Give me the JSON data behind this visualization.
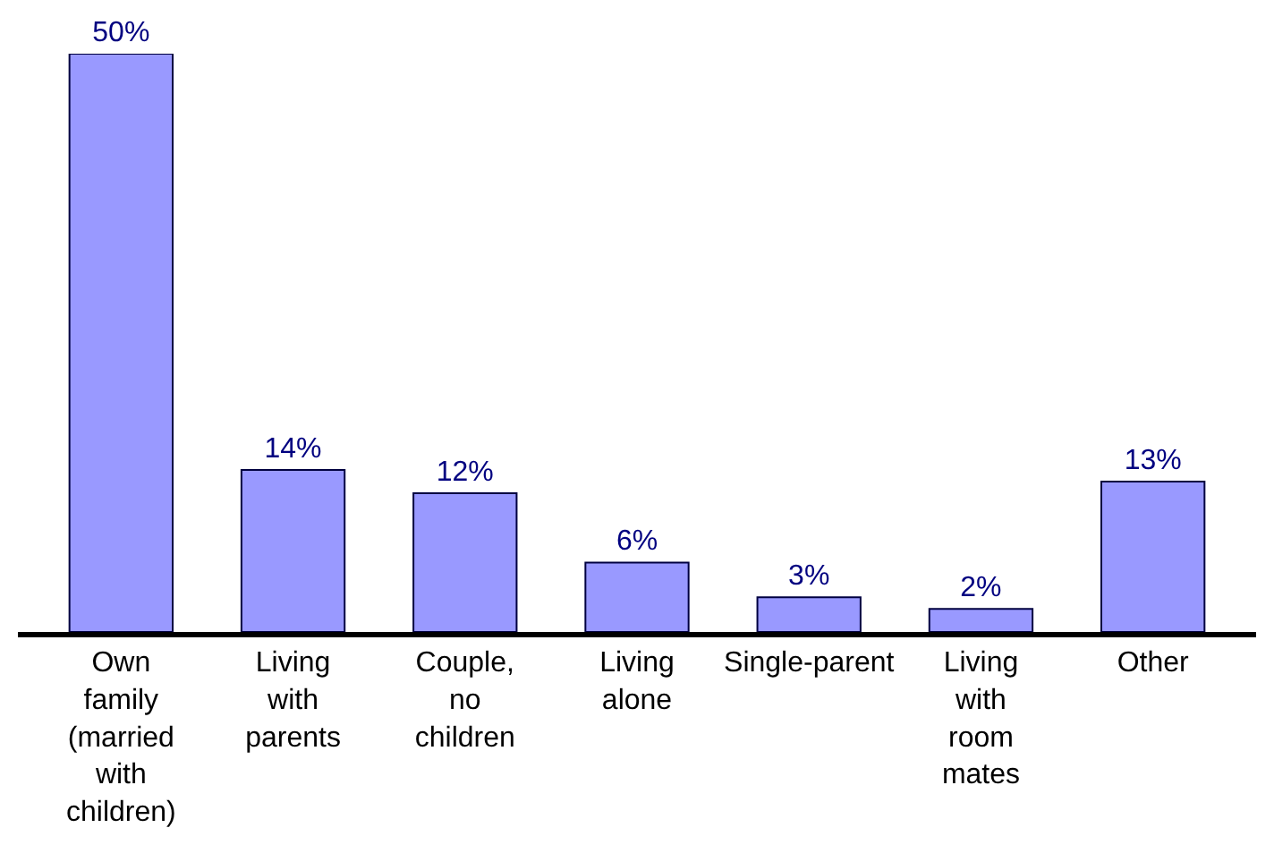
{
  "chart_data": {
    "type": "bar",
    "categories": [
      "Own family (married with children)",
      "Living with parents",
      "Couple, no children",
      "Living alone",
      "Single-parent",
      "Living with room mates",
      "Other"
    ],
    "values": [
      50,
      14,
      12,
      6,
      3,
      2,
      13
    ],
    "color": "#9999ff",
    "value_labels": [
      "50%",
      "14%",
      "12%",
      "6%",
      "3%",
      "2%",
      "13%"
    ],
    "legend": false
  }
}
